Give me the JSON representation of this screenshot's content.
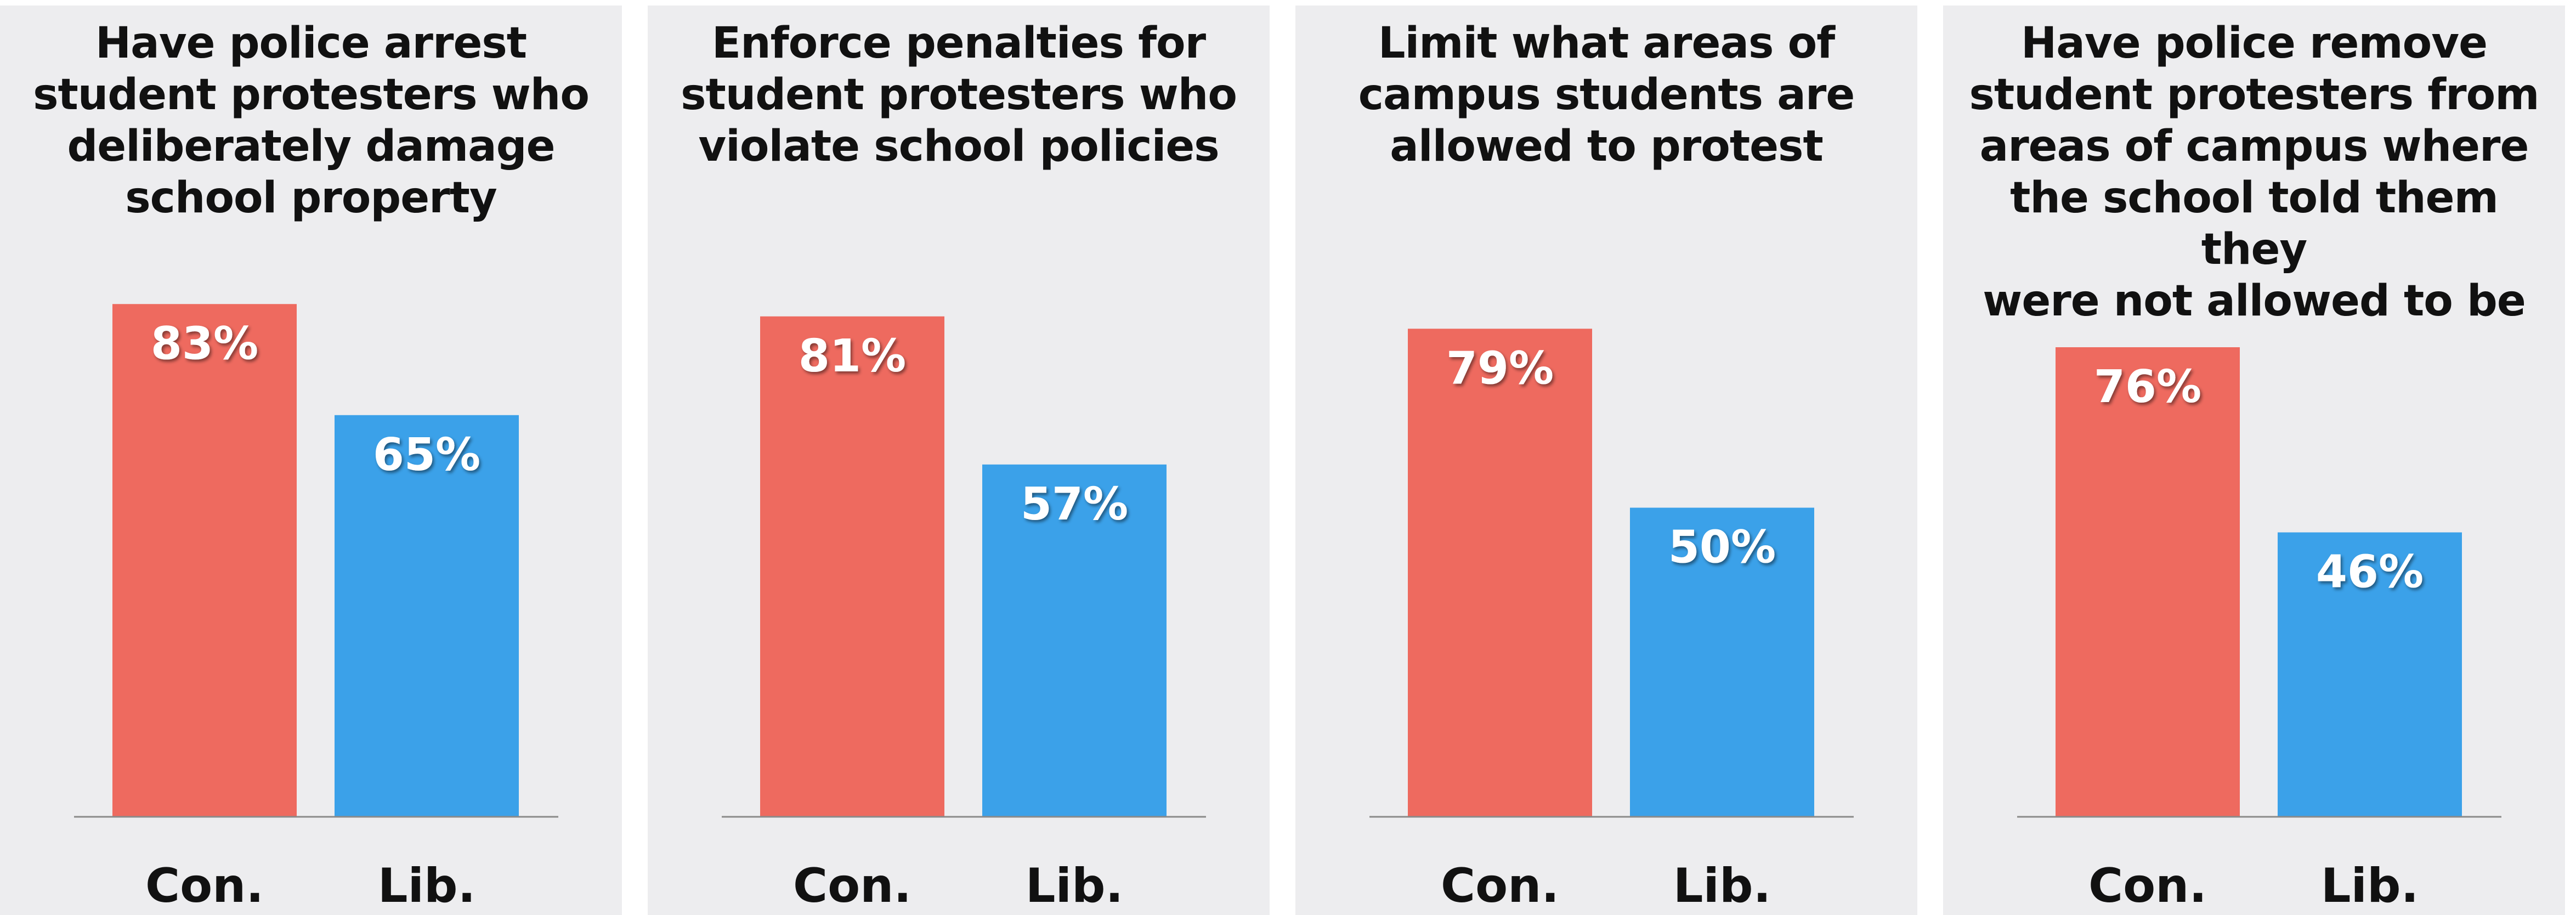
{
  "colors": {
    "con": "#ee6a5f",
    "lib": "#3ba1e9",
    "panel": "#ededef",
    "baseline": "#8a8a8a"
  },
  "chart_data": [
    {
      "type": "bar",
      "title": [
        "Have police arrest",
        "student protesters who",
        "deliberately damage",
        "school property"
      ],
      "categories": [
        "Con.",
        "Lib."
      ],
      "values": [
        83,
        65
      ],
      "value_labels": [
        "83%",
        "65%"
      ],
      "ylim": [
        0,
        100
      ]
    },
    {
      "type": "bar",
      "title": [
        "Enforce penalties for",
        "student protesters who",
        "violate school policies"
      ],
      "categories": [
        "Con.",
        "Lib."
      ],
      "values": [
        81,
        57
      ],
      "value_labels": [
        "81%",
        "57%"
      ],
      "ylim": [
        0,
        100
      ]
    },
    {
      "type": "bar",
      "title": [
        "Limit what areas of",
        "campus students are",
        "allowed to protest"
      ],
      "categories": [
        "Con.",
        "Lib."
      ],
      "values": [
        79,
        50
      ],
      "value_labels": [
        "79%",
        "50%"
      ],
      "ylim": [
        0,
        100
      ]
    },
    {
      "type": "bar",
      "title": [
        "Have police remove",
        "student protesters from",
        "areas of campus where",
        "the school told them they",
        "were not allowed to be"
      ],
      "categories": [
        "Con.",
        "Lib."
      ],
      "values": [
        76,
        46
      ],
      "value_labels": [
        "76%",
        "46%"
      ],
      "ylim": [
        0,
        100
      ]
    }
  ]
}
